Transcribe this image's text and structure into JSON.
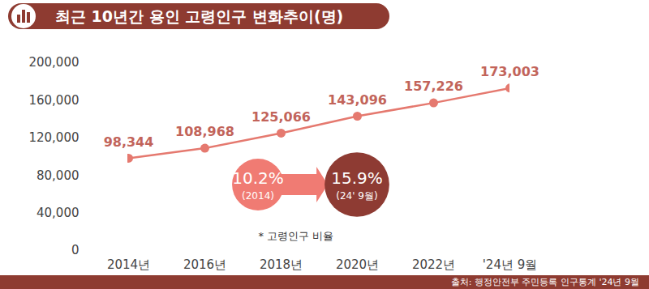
{
  "chart_data": {
    "type": "line",
    "title": "최근 10년간 용인 고령인구 변화추이(명)",
    "categories": [
      "2014년",
      "2016년",
      "2018년",
      "2020년",
      "2022년",
      "'24년 9월"
    ],
    "values": [
      98344,
      108968,
      125066,
      143096,
      157226,
      173003
    ],
    "value_labels": [
      "98,344",
      "108,968",
      "125,066",
      "143,096",
      "157,226",
      "173,003"
    ],
    "data_labels": true,
    "color": "#e5796f",
    "marker": "circle",
    "grid": false,
    "ylim": [
      0,
      200000
    ],
    "yticks": [
      0,
      {
        "value": 40000,
        "label": "40,000"
      },
      {
        "value": 80000,
        "label": "80,000"
      },
      {
        "value": 120000,
        "label": "120,000"
      },
      {
        "value": 160000,
        "label": "160,000"
      },
      {
        "value": 200000,
        "label": "200,000"
      }
    ],
    "annotations": {
      "ratio": {
        "values": [
          10.2,
          15.9
        ],
        "value_labels": [
          "10.2%",
          "15.9%"
        ],
        "periods": [
          "(2014)",
          "(24' 9월)"
        ],
        "colors": [
          "#f07b73",
          "#8e3b33"
        ],
        "note": "* 고령인구 비율"
      }
    },
    "source": "출처: 행정안전부 주민등록 인구통계 '24년 9월"
  }
}
